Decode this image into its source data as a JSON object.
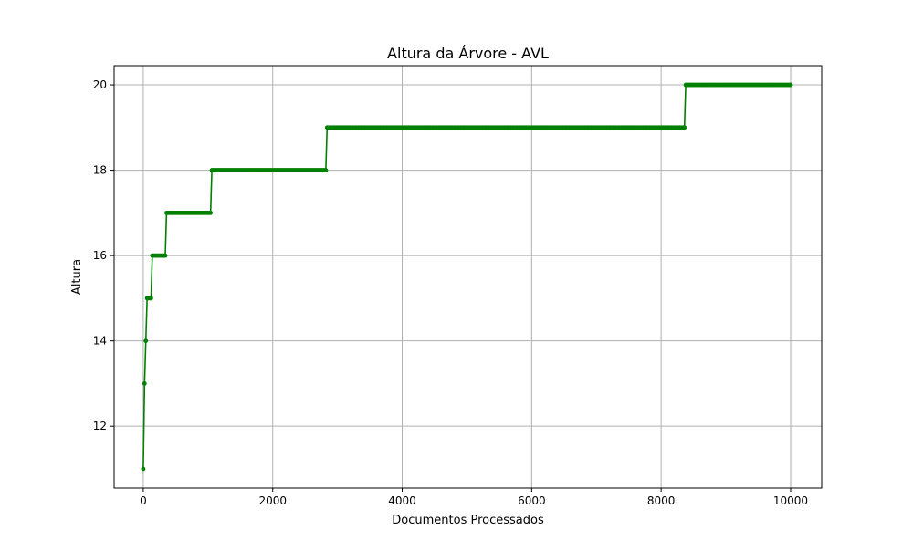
{
  "chart_data": {
    "type": "line",
    "title": "Altura da Árvore - AVL",
    "xlabel": "Documentos Processados",
    "ylabel": "Altura",
    "xlim": [
      -450,
      10480
    ],
    "ylim": [
      10.55,
      20.45
    ],
    "x_ticks": [
      0,
      2000,
      4000,
      6000,
      8000,
      10000
    ],
    "x_tick_labels": [
      "0",
      "2000",
      "4000",
      "6000",
      "8000",
      "10000"
    ],
    "y_ticks": [
      12,
      14,
      16,
      18,
      20
    ],
    "y_tick_labels": [
      "12",
      "14",
      "16",
      "18",
      "20"
    ],
    "grid": true,
    "marker": "circle",
    "sample_step": 20,
    "colors": {
      "line": "#008000",
      "grid": "#b0b0b0",
      "axes": "#000000"
    },
    "series": [
      {
        "levels": [
          {
            "from": 0,
            "to": 0,
            "y": 11
          },
          {
            "from": 20,
            "to": 20,
            "y": 13
          },
          {
            "from": 40,
            "to": 40,
            "y": 14
          },
          {
            "from": 60,
            "to": 120,
            "y": 15
          },
          {
            "from": 140,
            "to": 340,
            "y": 16
          },
          {
            "from": 360,
            "to": 1040,
            "y": 17
          },
          {
            "from": 1060,
            "to": 2820,
            "y": 18
          },
          {
            "from": 2840,
            "to": 8360,
            "y": 19
          },
          {
            "from": 8380,
            "to": 10000,
            "y": 20
          }
        ]
      }
    ]
  }
}
